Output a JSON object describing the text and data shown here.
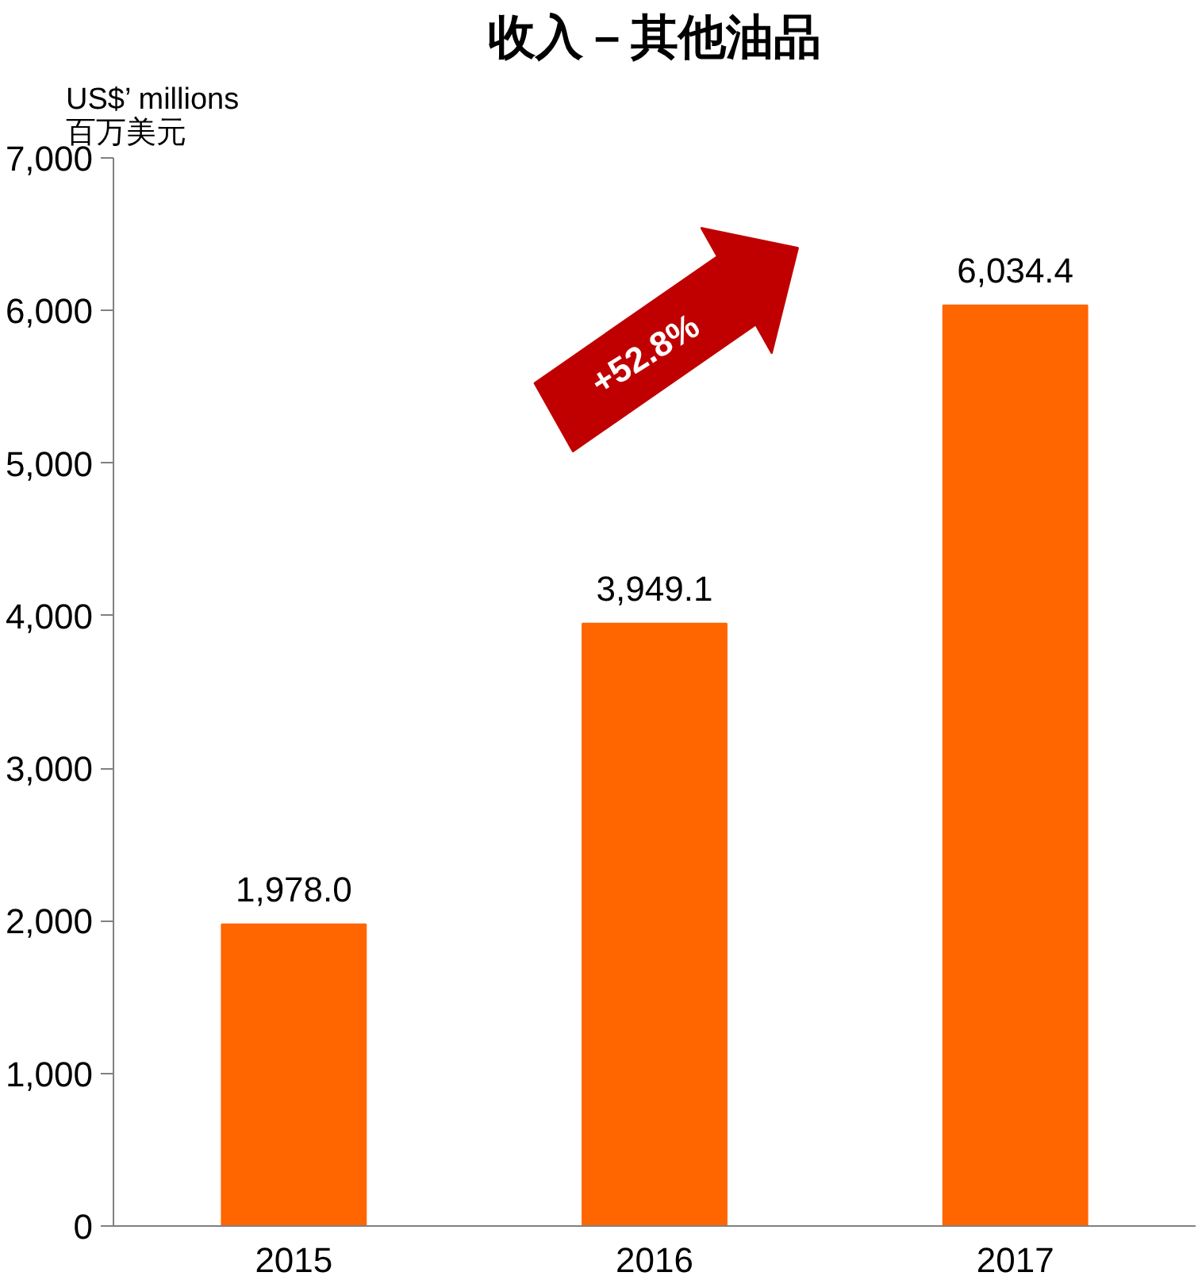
{
  "chart_data": {
    "type": "bar",
    "title": "收入－其他油品",
    "ylabel": "US$’ millions\n百万美元",
    "categories": [
      "2015",
      "2016",
      "2017"
    ],
    "values": [
      1978.0,
      3949.1,
      6034.4
    ],
    "color": "#ff6600",
    "value_labels": [
      "1,978.0",
      "3,949.1",
      "6,034.4"
    ],
    "ylim": [
      0,
      7000
    ],
    "yticks": [
      {
        "value": 0,
        "label": "0"
      },
      {
        "value": 1000,
        "label": "1,000"
      },
      {
        "value": 2000,
        "label": "2,000"
      },
      {
        "value": 3000,
        "label": "3,000"
      },
      {
        "value": 4000,
        "label": "4,000"
      },
      {
        "value": 5000,
        "label": "5,000"
      },
      {
        "value": 6000,
        "label": "6,000"
      },
      {
        "value": 7000,
        "label": "7,000"
      }
    ],
    "annotations": [
      "+52.8%"
    ],
    "grid": false
  }
}
